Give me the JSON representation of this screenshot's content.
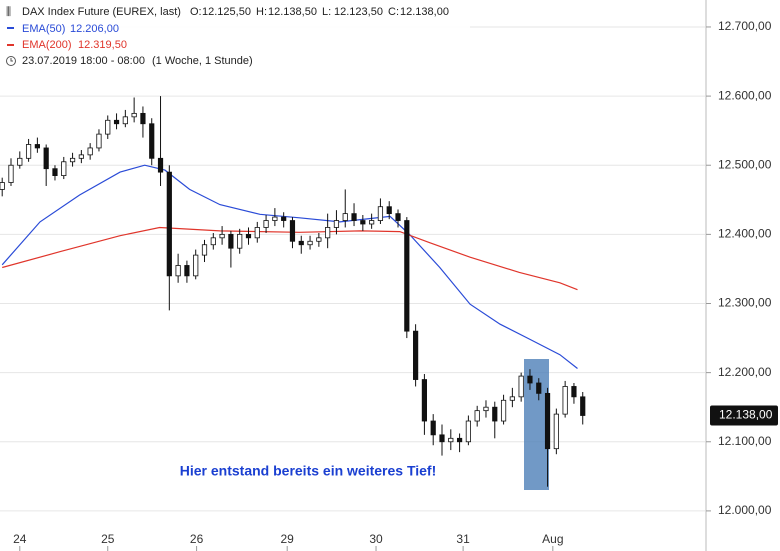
{
  "chart_data": {
    "type": "candlestick",
    "title": "DAX Index Future (EUREX, last)",
    "ohlc_header": [
      {
        "key": "O:",
        "text": "12.125,50"
      },
      {
        "key": "H:",
        "text": "12.138,50"
      },
      {
        "key": "L:",
        "text": "12.123,50"
      },
      {
        "key": "C:",
        "text": "12.138,00"
      }
    ],
    "period": "23.07.2019 18:00 - 08:00",
    "interval": "(1 Woche, 1 Stunde)",
    "annotation": "Hier entstand bereits ein weiteres Tief!",
    "last_price": {
      "value": 12138,
      "label": "12.138,00"
    },
    "up_color": "#ffffff",
    "down_color": "#111111",
    "x": [
      0,
      1,
      2,
      3,
      4,
      5,
      6,
      7,
      8,
      9,
      10,
      11,
      12,
      13,
      14,
      15,
      16,
      17,
      18,
      19,
      20,
      21,
      22,
      23,
      24,
      25,
      26,
      27,
      28,
      29,
      30,
      31,
      32,
      33,
      34,
      35,
      36,
      37,
      38,
      39,
      40,
      41,
      42,
      43,
      44,
      45,
      46,
      47,
      48,
      49,
      50,
      51,
      52,
      53,
      54,
      55,
      56,
      57,
      58,
      59,
      60,
      61,
      62,
      63,
      64,
      65,
      66
    ],
    "open": [
      12465,
      12475,
      12500,
      12510,
      12530,
      12525,
      12495,
      12485,
      12505,
      12510,
      12515,
      12525,
      12545,
      12565,
      12560,
      12570,
      12575,
      12560,
      12510,
      12490,
      12340,
      12355,
      12340,
      12370,
      12385,
      12395,
      12400,
      12380,
      12400,
      12395,
      12410,
      12420,
      12425,
      12420,
      12390,
      12385,
      12390,
      12395,
      12410,
      12420,
      12430,
      12420,
      12415,
      12420,
      12440,
      12430,
      12420,
      12260,
      12190,
      12130,
      12110,
      12100,
      12105,
      12100,
      12130,
      12145,
      12150,
      12130,
      12160,
      12165,
      12195,
      12185,
      12170,
      12090,
      12140,
      12180,
      12165
    ],
    "high": [
      12482,
      12510,
      12520,
      12538,
      12540,
      12530,
      12500,
      12512,
      12518,
      12522,
      12532,
      12552,
      12572,
      12575,
      12580,
      12598,
      12585,
      12568,
      12600,
      12500,
      12372,
      12362,
      12378,
      12392,
      12402,
      12412,
      12405,
      12408,
      12410,
      12418,
      12428,
      12438,
      12432,
      12425,
      12398,
      12398,
      12402,
      12430,
      12435,
      12465,
      12445,
      12428,
      12430,
      12452,
      12448,
      12436,
      12425,
      12270,
      12198,
      12140,
      12125,
      12118,
      12112,
      12138,
      12152,
      12160,
      12158,
      12168,
      12178,
      12200,
      12205,
      12192,
      12178,
      12148,
      12188,
      12185,
      12172
    ],
    "low": [
      12455,
      12470,
      12495,
      12505,
      12518,
      12470,
      12478,
      12480,
      12498,
      12503,
      12508,
      12520,
      12538,
      12552,
      12555,
      12562,
      12540,
      12500,
      12470,
      12290,
      12330,
      12330,
      12335,
      12360,
      12378,
      12385,
      12352,
      12372,
      12385,
      12388,
      12402,
      12412,
      12410,
      12380,
      12372,
      12378,
      12382,
      12380,
      12400,
      12410,
      12412,
      12405,
      12408,
      12415,
      12422,
      12410,
      12250,
      12180,
      12110,
      12095,
      12080,
      12088,
      12085,
      12095,
      12122,
      12135,
      12105,
      12125,
      12150,
      12158,
      12175,
      12160,
      12035,
      12082,
      12135,
      12155,
      12125
    ],
    "close": [
      12475,
      12500,
      12510,
      12530,
      12525,
      12495,
      12485,
      12505,
      12510,
      12515,
      12525,
      12545,
      12565,
      12560,
      12570,
      12575,
      12560,
      12510,
      12490,
      12340,
      12355,
      12340,
      12370,
      12385,
      12395,
      12400,
      12380,
      12400,
      12395,
      12410,
      12420,
      12425,
      12420,
      12390,
      12385,
      12390,
      12395,
      12410,
      12420,
      12430,
      12420,
      12415,
      12420,
      12440,
      12430,
      12420,
      12260,
      12190,
      12130,
      12110,
      12100,
      12105,
      12100,
      12130,
      12145,
      12150,
      12130,
      12160,
      12165,
      12195,
      12185,
      12170,
      12090,
      12140,
      12180,
      12165,
      12138
    ],
    "lines": [
      {
        "name": "EMA(50)",
        "color": "#2a4bd7",
        "value_label": "12.206,00",
        "x": [
          0,
          4.3,
          8.8,
          13.4,
          16.2,
          18.5,
          21.3,
          24.75,
          29.3,
          33.8,
          38.4,
          44.1,
          46.3,
          49.75,
          53.2,
          56.6,
          60,
          63.4,
          65.4
        ],
        "values": [
          12356,
          12418,
          12457,
          12490,
          12500,
          12493,
          12465,
          12443,
          12429,
          12424,
          12418,
          12426,
          12400,
          12352,
          12299,
          12270,
          12248,
          12226,
          12206
        ]
      },
      {
        "name": "EMA(200)",
        "color": "#e0352b",
        "value_label": "12.319,50",
        "x": [
          0,
          6.6,
          13.4,
          17.9,
          24.75,
          33.8,
          40.7,
          45.2,
          48.6,
          53.2,
          58.8,
          63.4,
          65.4
        ],
        "values": [
          12352,
          12375,
          12398,
          12410,
          12405,
          12403,
          12405,
          12404,
          12388,
          12367,
          12345,
          12330,
          12320
        ]
      }
    ],
    "xlim": [
      -0.25,
      79.9
    ],
    "xticks": [
      {
        "value": 2,
        "label": "24"
      },
      {
        "value": 12,
        "label": "25"
      },
      {
        "value": 22.1,
        "label": "26"
      },
      {
        "value": 32.4,
        "label": "29"
      },
      {
        "value": 42.5,
        "label": "30"
      },
      {
        "value": 52.4,
        "label": "31"
      },
      {
        "value": 62.6,
        "label": "Aug"
      }
    ],
    "ylim": [
      11942,
      12739
    ],
    "yticks": [
      {
        "value": 12000,
        "label": "12.000,00"
      },
      {
        "value": 12100,
        "label": "12.100,00"
      },
      {
        "value": 12200,
        "label": "12.200,00"
      },
      {
        "value": 12300,
        "label": "12.300,00"
      },
      {
        "value": 12400,
        "label": "12.400,00"
      },
      {
        "value": 12500,
        "label": "12.500,00"
      },
      {
        "value": 12600,
        "label": "12.600,00"
      },
      {
        "value": 12700,
        "label": "12.700,00"
      }
    ],
    "grid": true
  }
}
